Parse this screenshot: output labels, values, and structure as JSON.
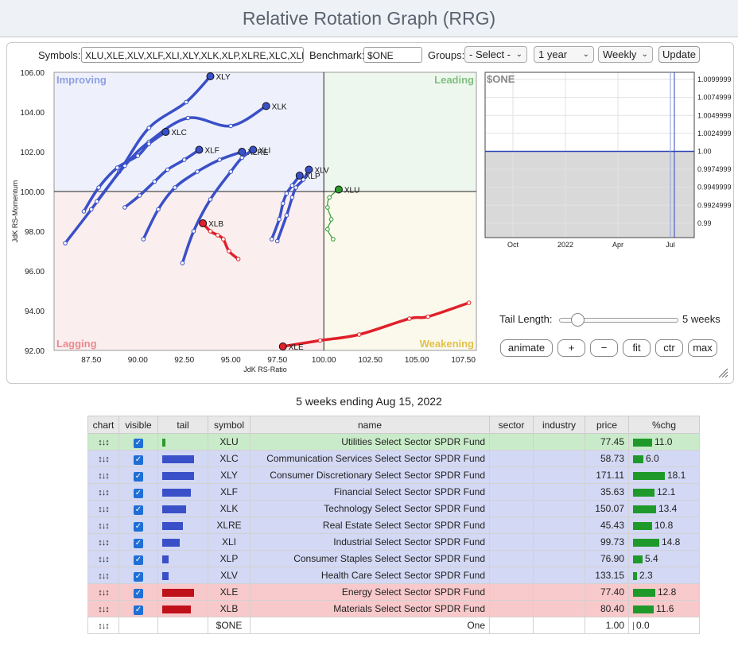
{
  "title": "Relative Rotation Graph (RRG)",
  "controls": {
    "symbols_label": "Symbols:",
    "symbols_value": "XLU,XLE,XLV,XLF,XLI,XLY,XLK,XLP,XLRE,XLC,XLB",
    "benchmark_label": "Benchmark:",
    "benchmark_value": "$ONE",
    "groups_label": "Groups:",
    "groups_value": "- Select -",
    "period_value": "1 year",
    "interval_value": "Weekly",
    "update_label": "Update",
    "tail_length_label": "Tail Length:",
    "tail_length_value": 5,
    "tail_length_text": "5 weeks",
    "buttons": [
      "animate",
      "+",
      "−",
      "fit",
      "ctr",
      "max"
    ]
  },
  "subtitle": "5 weeks ending Aug 15, 2022",
  "chart_data": [
    {
      "type": "scatter",
      "xlabel": "JdK RS-Ratio",
      "ylabel": "JdK RS-Momentum",
      "xlim": [
        85.5,
        108.2
      ],
      "ylim": [
        92,
        106
      ],
      "x_ticks": [
        "87.50",
        "90.00",
        "92.50",
        "95.00",
        "97.50",
        "100.00",
        "102.50",
        "105.00",
        "107.50"
      ],
      "y_ticks": [
        "92.00",
        "94.00",
        "96.00",
        "98.00",
        "100.00",
        "102.00",
        "104.00",
        "106.00"
      ],
      "quadrants": [
        {
          "name": "Improving",
          "color": "#8ea0e0"
        },
        {
          "name": "Leading",
          "color": "#7fbf7f"
        },
        {
          "name": "Lagging",
          "color": "#e88a8f"
        },
        {
          "name": "Weakening",
          "color": "#e3c04a"
        }
      ],
      "quadrant_fills": {
        "improving": "#eef0fb",
        "leading": "#eef7ee",
        "lagging": "#fbeeee",
        "weakening": "#fbf9ec"
      },
      "series": [
        {
          "name": "XLY",
          "color": "#3a50c8",
          "points": [
            [
              86.1,
              97.4
            ],
            [
              87.5,
              99.1
            ],
            [
              89.0,
              101.0
            ],
            [
              90.6,
              103.2
            ],
            [
              92.6,
              104.5
            ],
            [
              93.9,
              105.8
            ]
          ]
        },
        {
          "name": "XLK",
          "color": "#3a50c8",
          "points": [
            [
              87.8,
              99.5
            ],
            [
              89.3,
              101.3
            ],
            [
              90.6,
              102.5
            ],
            [
              92.7,
              103.7
            ],
            [
              95.0,
              103.3
            ],
            [
              96.9,
              104.3
            ]
          ]
        },
        {
          "name": "XLC",
          "color": "#3a50c8",
          "points": [
            [
              87.1,
              99.0
            ],
            [
              87.9,
              100.2
            ],
            [
              88.9,
              101.2
            ],
            [
              90.0,
              101.8
            ],
            [
              90.6,
              102.4
            ],
            [
              91.5,
              103.0
            ]
          ]
        },
        {
          "name": "XLF",
          "color": "#3a50c8",
          "points": [
            [
              89.3,
              99.2
            ],
            [
              90.1,
              99.8
            ],
            [
              90.9,
              100.5
            ],
            [
              91.6,
              101.1
            ],
            [
              92.5,
              101.6
            ],
            [
              93.3,
              102.1
            ]
          ]
        },
        {
          "name": "XLRE",
          "color": "#3a50c8",
          "points": [
            [
              90.3,
              97.6
            ],
            [
              91.1,
              99.1
            ],
            [
              92.0,
              100.2
            ],
            [
              93.2,
              101.0
            ],
            [
              94.4,
              101.6
            ],
            [
              95.6,
              102.0
            ]
          ]
        },
        {
          "name": "XLI",
          "color": "#3a50c8",
          "points": [
            [
              92.4,
              96.4
            ],
            [
              93.0,
              98.0
            ],
            [
              93.9,
              99.6
            ],
            [
              95.0,
              101.0
            ],
            [
              95.6,
              101.7
            ],
            [
              96.2,
              102.1
            ]
          ]
        },
        {
          "name": "XLV",
          "color": "#3a50c8",
          "points": [
            [
              97.5,
              97.5
            ],
            [
              98.0,
              98.8
            ],
            [
              98.3,
              99.7
            ],
            [
              98.5,
              100.2
            ],
            [
              98.9,
              100.6
            ],
            [
              99.2,
              101.1
            ]
          ]
        },
        {
          "name": "XLP",
          "color": "#3a50c8",
          "points": [
            [
              97.2,
              97.6
            ],
            [
              97.6,
              98.6
            ],
            [
              97.8,
              99.4
            ],
            [
              98.0,
              99.9
            ],
            [
              98.3,
              100.3
            ],
            [
              98.7,
              100.8
            ]
          ]
        },
        {
          "name": "XLU",
          "color": "#2a9a2a",
          "points": [
            [
              100.5,
              97.6
            ],
            [
              100.2,
              98.1
            ],
            [
              100.4,
              98.6
            ],
            [
              100.2,
              99.2
            ],
            [
              100.3,
              99.7
            ],
            [
              100.8,
              100.1
            ]
          ]
        },
        {
          "name": "XLB",
          "color": "#e0202a",
          "points": [
            [
              95.4,
              96.6
            ],
            [
              94.9,
              97.0
            ],
            [
              94.6,
              97.6
            ],
            [
              94.3,
              97.8
            ],
            [
              93.9,
              98.0
            ],
            [
              93.5,
              98.4
            ]
          ]
        },
        {
          "name": "XLE",
          "color": "#e0202a",
          "points": [
            [
              107.8,
              94.4
            ],
            [
              105.6,
              93.7
            ],
            [
              104.6,
              93.6
            ],
            [
              101.9,
              92.8
            ],
            [
              99.8,
              92.5
            ],
            [
              97.8,
              92.2
            ]
          ]
        }
      ]
    },
    {
      "type": "line",
      "title": "$ONE",
      "x_ticks": [
        "Oct",
        "2022",
        "Apr",
        "Jul"
      ],
      "y_ticks": [
        "1.0099999",
        "1.0074999",
        "1.0049999",
        "1.0024999",
        "1.00",
        "0.9974999",
        "0.9949999",
        "0.9924999",
        "0.99"
      ],
      "value": 1.0,
      "ylim": [
        0.988,
        1.011
      ]
    }
  ],
  "table": {
    "headers": [
      "chart",
      "visible",
      "tail",
      "symbol",
      "name",
      "sector",
      "industry",
      "price",
      "%chg"
    ],
    "rows": [
      {
        "symbol": "XLU",
        "name": "Utilities Select Sector SPDR Fund",
        "sector": "",
        "industry": "",
        "price": "77.45",
        "chg": "11.0",
        "quadrant": "lead",
        "tail_color": "#2a9a2a",
        "tail": 0.1,
        "visible": true
      },
      {
        "symbol": "XLC",
        "name": "Communication Services Select Sector SPDR Fund",
        "sector": "",
        "industry": "",
        "price": "58.73",
        "chg": "6.0",
        "quadrant": "imp",
        "tail_color": "#3a50c8",
        "tail": 1.0,
        "visible": true
      },
      {
        "symbol": "XLY",
        "name": "Consumer Discretionary Select Sector SPDR Fund",
        "sector": "",
        "industry": "",
        "price": "171.11",
        "chg": "18.1",
        "quadrant": "imp",
        "tail_color": "#3a50c8",
        "tail": 1.0,
        "visible": true
      },
      {
        "symbol": "XLF",
        "name": "Financial Select Sector SPDR Fund",
        "sector": "",
        "industry": "",
        "price": "35.63",
        "chg": "12.1",
        "quadrant": "imp",
        "tail_color": "#3a50c8",
        "tail": 0.9,
        "visible": true
      },
      {
        "symbol": "XLK",
        "name": "Technology Select Sector SPDR Fund",
        "sector": "",
        "industry": "",
        "price": "150.07",
        "chg": "13.4",
        "quadrant": "imp",
        "tail_color": "#3a50c8",
        "tail": 0.75,
        "visible": true
      },
      {
        "symbol": "XLRE",
        "name": "Real Estate Select Sector SPDR Fund",
        "sector": "",
        "industry": "",
        "price": "45.43",
        "chg": "10.8",
        "quadrant": "imp",
        "tail_color": "#3a50c8",
        "tail": 0.65,
        "visible": true
      },
      {
        "symbol": "XLI",
        "name": "Industrial Select Sector SPDR Fund",
        "sector": "",
        "industry": "",
        "price": "99.73",
        "chg": "14.8",
        "quadrant": "imp",
        "tail_color": "#3a50c8",
        "tail": 0.55,
        "visible": true
      },
      {
        "symbol": "XLP",
        "name": "Consumer Staples Select Sector SPDR Fund",
        "sector": "",
        "industry": "",
        "price": "76.90",
        "chg": "5.4",
        "quadrant": "imp",
        "tail_color": "#3a50c8",
        "tail": 0.2,
        "visible": true
      },
      {
        "symbol": "XLV",
        "name": "Health Care Select Sector SPDR Fund",
        "sector": "",
        "industry": "",
        "price": "133.15",
        "chg": "2.3",
        "quadrant": "imp",
        "tail_color": "#3a50c8",
        "tail": 0.2,
        "visible": true
      },
      {
        "symbol": "XLE",
        "name": "Energy Select Sector SPDR Fund",
        "sector": "",
        "industry": "",
        "price": "77.40",
        "chg": "12.8",
        "quadrant": "lag",
        "tail_color": "#c0101a",
        "tail": 1.0,
        "visible": true
      },
      {
        "symbol": "XLB",
        "name": "Materials Select Sector SPDR Fund",
        "sector": "",
        "industry": "",
        "price": "80.40",
        "chg": "11.6",
        "quadrant": "lag",
        "tail_color": "#c0101a",
        "tail": 0.9,
        "visible": true
      },
      {
        "symbol": "$ONE",
        "name": "One",
        "sector": "",
        "industry": "",
        "price": "1.00",
        "chg": "0.0",
        "quadrant": "none",
        "tail_color": "",
        "tail": 0,
        "visible": false
      }
    ]
  }
}
